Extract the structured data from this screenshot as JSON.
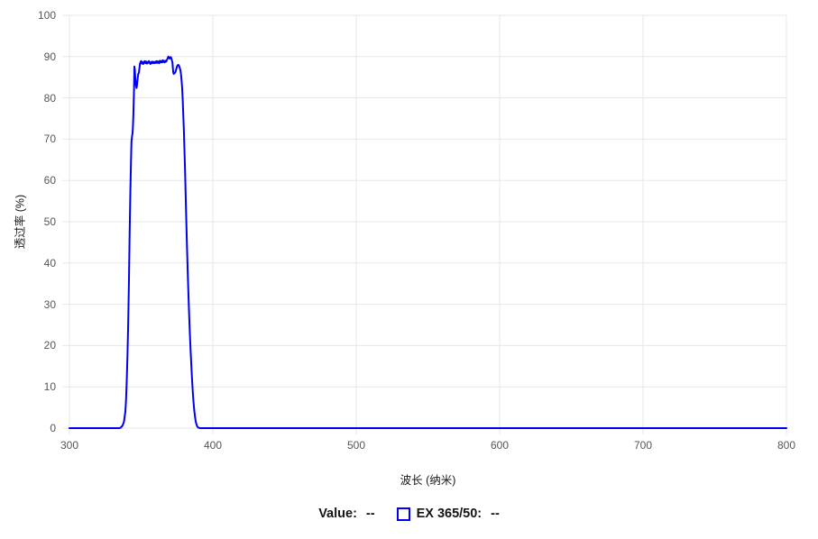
{
  "chart_data": {
    "type": "line",
    "title": "",
    "xlabel": "波长 (纳米)",
    "ylabel": "透过率 (%)",
    "xlim": [
      300,
      800
    ],
    "ylim": [
      0,
      100
    ],
    "x_ticks": [
      300,
      400,
      500,
      600,
      700,
      800
    ],
    "y_ticks": [
      0,
      10,
      20,
      30,
      40,
      50,
      60,
      70,
      80,
      90,
      100
    ],
    "grid": true,
    "legend_position": "bottom",
    "series": [
      {
        "name": "EX 365/50",
        "color": "#0000f0",
        "points": [
          [
            300,
            0
          ],
          [
            310,
            0
          ],
          [
            320,
            0
          ],
          [
            330,
            0
          ],
          [
            335,
            0
          ],
          [
            336,
            0.2
          ],
          [
            337,
            0.6
          ],
          [
            338,
            1.5
          ],
          [
            339,
            4
          ],
          [
            339.5,
            7
          ],
          [
            340,
            12
          ],
          [
            340.5,
            18
          ],
          [
            341,
            26
          ],
          [
            341.5,
            36
          ],
          [
            342,
            48
          ],
          [
            342.5,
            58
          ],
          [
            343,
            66
          ],
          [
            343.3,
            69.5
          ],
          [
            343.7,
            70.8
          ],
          [
            344,
            71.5
          ],
          [
            344.3,
            73
          ],
          [
            344.6,
            76
          ],
          [
            345,
            82
          ],
          [
            345.3,
            87.6
          ],
          [
            345.6,
            86.8
          ],
          [
            346,
            84.5
          ],
          [
            346.4,
            83
          ],
          [
            346.8,
            82.4
          ],
          [
            347.2,
            83.2
          ],
          [
            347.6,
            84.8
          ],
          [
            348,
            85.8
          ],
          [
            348.4,
            86.1
          ],
          [
            348.8,
            87.2
          ],
          [
            349.2,
            88.3
          ],
          [
            349.6,
            88.7
          ],
          [
            350,
            88.9
          ],
          [
            350.5,
            88.3
          ],
          [
            351,
            88.7
          ],
          [
            351.5,
            88.2
          ],
          [
            352,
            88.6
          ],
          [
            352.5,
            88.9
          ],
          [
            353,
            88.4
          ],
          [
            353.5,
            88.8
          ],
          [
            354,
            88.3
          ],
          [
            354.5,
            88.7
          ],
          [
            355,
            88.5
          ],
          [
            355.5,
            88.9
          ],
          [
            356,
            88.5
          ],
          [
            356.5,
            88.2
          ],
          [
            357,
            88.7
          ],
          [
            357.5,
            88.4
          ],
          [
            358,
            88.8
          ],
          [
            358.5,
            88.4
          ],
          [
            359,
            88.7
          ],
          [
            359.5,
            88.4
          ],
          [
            360,
            88.8
          ],
          [
            360.5,
            88.5
          ],
          [
            361,
            88.9
          ],
          [
            361.5,
            88.5
          ],
          [
            362,
            88.8
          ],
          [
            362.5,
            88.4
          ],
          [
            363,
            89
          ],
          [
            363.5,
            88.6
          ],
          [
            364,
            88.9
          ],
          [
            364.5,
            88.6
          ],
          [
            365,
            89.1
          ],
          [
            365.5,
            88.7
          ],
          [
            366,
            89
          ],
          [
            366.5,
            88.6
          ],
          [
            367,
            89
          ],
          [
            367.5,
            88.8
          ],
          [
            368,
            89.2
          ],
          [
            368.5,
            89.6
          ],
          [
            369,
            90
          ],
          [
            369.4,
            89.8
          ],
          [
            369.8,
            89.5
          ],
          [
            370.2,
            89.7
          ],
          [
            370.6,
            89.9
          ],
          [
            371,
            89.6
          ],
          [
            371.4,
            89.2
          ],
          [
            371.8,
            88.6
          ],
          [
            372.1,
            87.4
          ],
          [
            372.4,
            86.2
          ],
          [
            372.7,
            85.8
          ],
          [
            373,
            85.9
          ],
          [
            373.4,
            86
          ],
          [
            373.8,
            86.2
          ],
          [
            374.2,
            86.6
          ],
          [
            374.6,
            87.1
          ],
          [
            375,
            87.6
          ],
          [
            375.4,
            87.9
          ],
          [
            375.8,
            88
          ],
          [
            376.2,
            87.9
          ],
          [
            376.6,
            87.6
          ],
          [
            377,
            87.2
          ],
          [
            377.4,
            86.6
          ],
          [
            377.8,
            85.7
          ],
          [
            378.2,
            84.3
          ],
          [
            378.6,
            82.3
          ],
          [
            379,
            79.5
          ],
          [
            379.4,
            76
          ],
          [
            379.8,
            72
          ],
          [
            380.2,
            67.5
          ],
          [
            380.6,
            62.5
          ],
          [
            381,
            57
          ],
          [
            381.5,
            50
          ],
          [
            382,
            43.5
          ],
          [
            382.5,
            37.5
          ],
          [
            383,
            32
          ],
          [
            383.5,
            27
          ],
          [
            384,
            22.5
          ],
          [
            384.5,
            18.5
          ],
          [
            385,
            15
          ],
          [
            385.5,
            12
          ],
          [
            386,
            9
          ],
          [
            386.5,
            6.5
          ],
          [
            387,
            4.5
          ],
          [
            387.5,
            3
          ],
          [
            388,
            1.8
          ],
          [
            388.5,
            1
          ],
          [
            389,
            0.5
          ],
          [
            389.5,
            0.25
          ],
          [
            390,
            0.1
          ],
          [
            391,
            0
          ],
          [
            395,
            0
          ],
          [
            400,
            0
          ],
          [
            425,
            0
          ],
          [
            450,
            0
          ],
          [
            475,
            0
          ],
          [
            500,
            0
          ],
          [
            550,
            0
          ],
          [
            600,
            0
          ],
          [
            650,
            0
          ],
          [
            700,
            0
          ],
          [
            750,
            0
          ],
          [
            800,
            0
          ]
        ]
      }
    ]
  },
  "legend": {
    "value_label": "Value:",
    "value": "--",
    "series_label": "EX 365/50:",
    "series_value": "--"
  },
  "colors": {
    "line": "#0000f0",
    "grid": "#e7e7e7",
    "tick_text": "#555555",
    "label_text": "#1a1a1a",
    "background": "#ffffff"
  }
}
